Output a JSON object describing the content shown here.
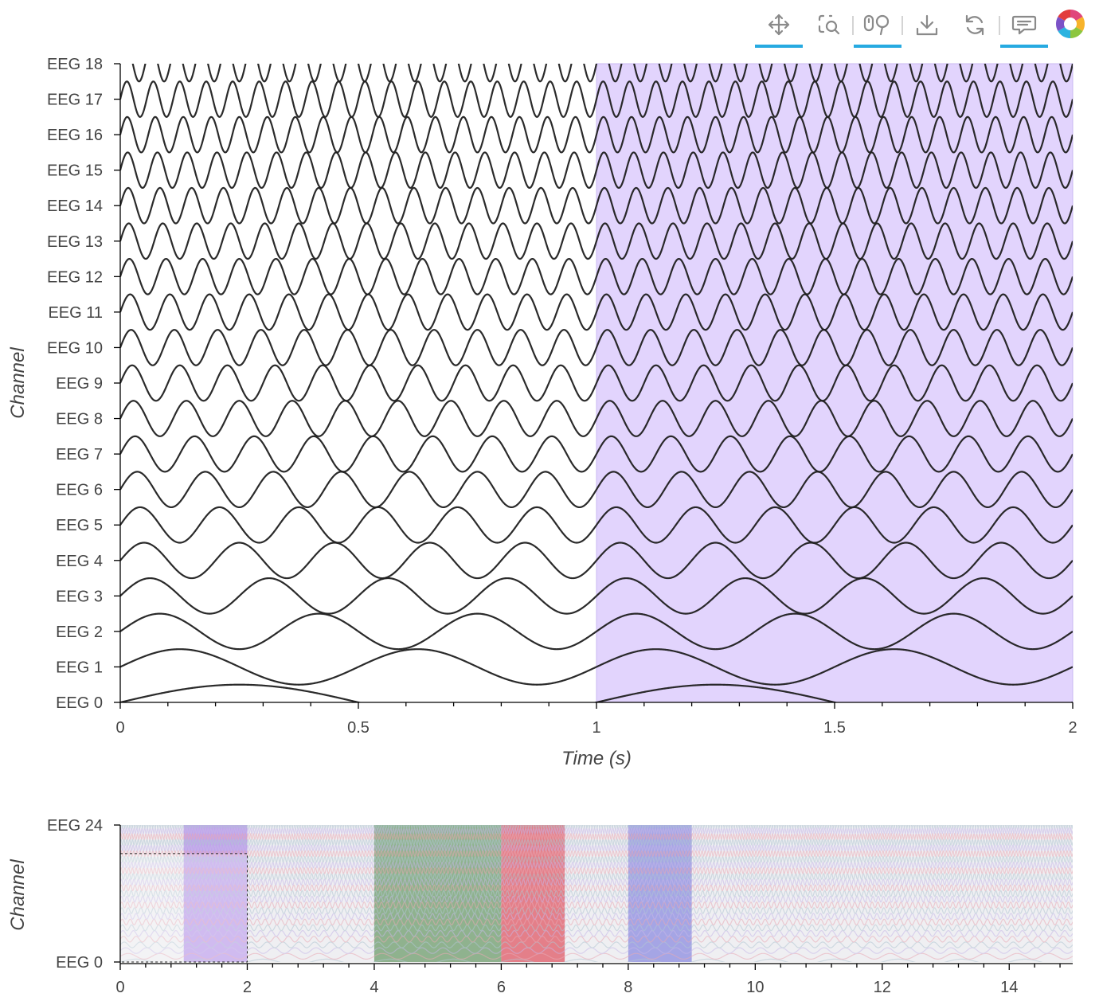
{
  "toolbar": {
    "tools": [
      {
        "name": "pan-tool",
        "icon": "pan-icon",
        "active": true
      },
      {
        "name": "box-zoom-tool",
        "icon": "box-zoom-icon",
        "active": false
      },
      {
        "name": "wheel-zoom-tool",
        "icon": "wheel-zoom-icon",
        "active": true
      },
      {
        "name": "save-tool",
        "icon": "save-icon",
        "active": false
      },
      {
        "name": "reset-tool",
        "icon": "reset-icon",
        "active": false
      },
      {
        "name": "hover-tool",
        "icon": "hover-icon",
        "active": true
      },
      {
        "name": "logo",
        "icon": "bokeh-logo-icon",
        "active": false
      }
    ],
    "accent_color": "#26aae1"
  },
  "chart_data": [
    {
      "type": "line",
      "xlabel": "Time (s)",
      "ylabel": "Channel",
      "xlim": [
        0,
        2
      ],
      "x_ticks": [
        "0",
        "0.5",
        "1",
        "1.5",
        "2"
      ],
      "channels": [
        "EEG 0",
        "EEG 1",
        "EEG 2",
        "EEG 3",
        "EEG 4",
        "EEG 5",
        "EEG 6",
        "EEG 7",
        "EEG 8",
        "EEG 9",
        "EEG 10",
        "EEG 11",
        "EEG 12",
        "EEG 13",
        "EEG 14",
        "EEG 15",
        "EEG 16",
        "EEG 17",
        "EEG 18"
      ],
      "signal_model": "sin(2*pi*(channel+1)*t)*amplitude + channel_offset",
      "amplitude": 0.5,
      "line_color": "#1f1f1f",
      "highlight_regions": [
        {
          "x0": 1,
          "x1": 2,
          "color": "#e2d4fd"
        }
      ],
      "grid": false
    },
    {
      "type": "line",
      "ylabel": "Channel",
      "xlim": [
        0,
        15
      ],
      "x_ticks": [
        "0",
        "2",
        "4",
        "6",
        "8",
        "10",
        "12",
        "14"
      ],
      "y_ticks": [
        "EEG 0",
        "EEG 24"
      ],
      "channel_count": 25,
      "line_colors": [
        "#b2c7d3",
        "#e8aab5",
        "#c7b8e8"
      ],
      "highlight_regions": [
        {
          "x0": 1,
          "x1": 2,
          "color": "#b08be8"
        },
        {
          "x0": 4,
          "x1": 6,
          "color": "#6f9e6c"
        },
        {
          "x0": 6,
          "x1": 7,
          "color": "#e05a66"
        },
        {
          "x0": 8,
          "x1": 9,
          "color": "#8c8ce0"
        }
      ],
      "selection_box": {
        "x0": 0,
        "x1": 2,
        "y0": 0,
        "y1": 19
      },
      "grid": false
    }
  ]
}
